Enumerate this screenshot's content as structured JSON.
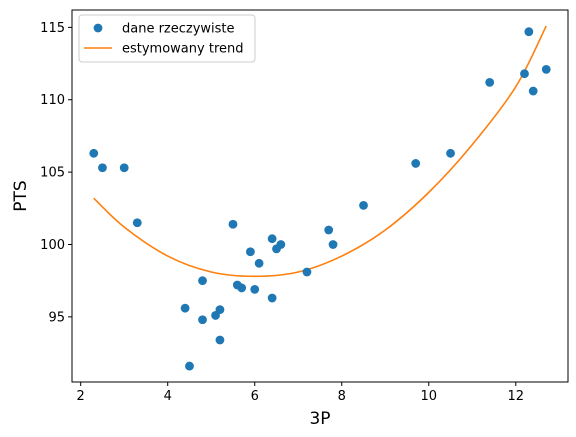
{
  "chart_data": {
    "type": "scatter",
    "title": "",
    "xlabel": "3P",
    "ylabel": "PTS",
    "xlim": [
      1.8,
      13.2
    ],
    "ylim": [
      90.5,
      116.2
    ],
    "x_ticks": [
      2,
      4,
      6,
      8,
      10,
      12
    ],
    "y_ticks": [
      95,
      100,
      105,
      110,
      115
    ],
    "grid": false,
    "legend_position": "top-left",
    "series": [
      {
        "name": "dane rzeczywiste",
        "kind": "scatter",
        "color": "#1f77b4",
        "points": [
          [
            2.3,
            106.3
          ],
          [
            2.5,
            105.3
          ],
          [
            3.0,
            105.3
          ],
          [
            3.3,
            101.5
          ],
          [
            4.4,
            95.6
          ],
          [
            4.5,
            91.6
          ],
          [
            4.8,
            97.5
          ],
          [
            4.8,
            94.8
          ],
          [
            5.1,
            95.1
          ],
          [
            5.2,
            95.5
          ],
          [
            5.2,
            93.4
          ],
          [
            5.5,
            101.4
          ],
          [
            5.6,
            97.2
          ],
          [
            5.7,
            97.0
          ],
          [
            5.9,
            99.5
          ],
          [
            6.0,
            96.9
          ],
          [
            6.1,
            98.7
          ],
          [
            6.4,
            100.4
          ],
          [
            6.4,
            96.3
          ],
          [
            6.5,
            99.7
          ],
          [
            6.6,
            100.0
          ],
          [
            7.2,
            98.1
          ],
          [
            7.7,
            101.0
          ],
          [
            7.8,
            100.0
          ],
          [
            8.5,
            102.7
          ],
          [
            9.7,
            105.6
          ],
          [
            10.5,
            106.3
          ],
          [
            11.4,
            111.2
          ],
          [
            12.2,
            111.8
          ],
          [
            12.3,
            114.7
          ],
          [
            12.4,
            110.6
          ],
          [
            12.7,
            112.1
          ]
        ]
      },
      {
        "name": "estymowany trend",
        "kind": "line",
        "color": "#ff7f0e",
        "points": [
          [
            2.3,
            103.2
          ],
          [
            3.0,
            101.2
          ],
          [
            4.0,
            99.2
          ],
          [
            5.0,
            98.1
          ],
          [
            6.0,
            97.8
          ],
          [
            7.0,
            98.1
          ],
          [
            8.0,
            99.2
          ],
          [
            9.0,
            101.0
          ],
          [
            10.0,
            103.6
          ],
          [
            11.0,
            106.9
          ],
          [
            12.0,
            110.9
          ],
          [
            12.7,
            115.1
          ]
        ]
      }
    ]
  }
}
